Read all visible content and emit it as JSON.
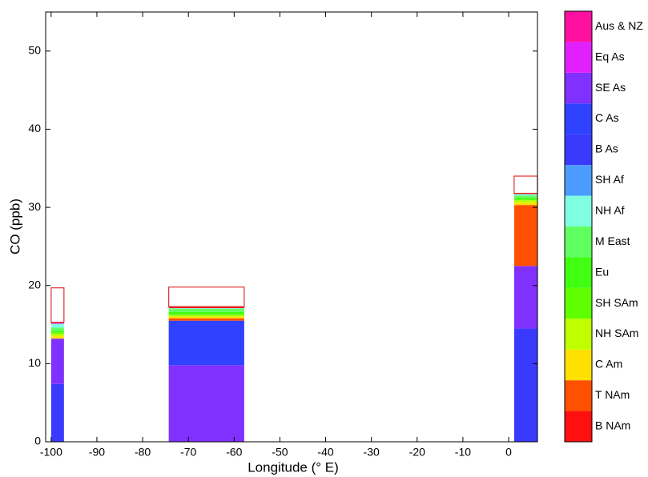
{
  "chart_data": {
    "type": "stacked-range-bar",
    "xlabel": "Longitude (° E)",
    "ylabel": "CO (ppb)",
    "xlim": [
      -101.2,
      6.3
    ],
    "ylim": [
      0,
      55
    ],
    "xticks": [
      -100,
      -90,
      -80,
      -70,
      -60,
      -50,
      -40,
      -30,
      -20,
      -10,
      0
    ],
    "yticks": [
      0,
      10,
      20,
      30,
      40,
      50
    ],
    "x_start": [
      -100,
      -74.3,
      1.2
    ],
    "x_end": [
      -97.2,
      -57.8,
      6.3
    ],
    "observed": [
      19.7,
      19.8,
      34.0
    ],
    "observed_color": "#e03030",
    "series": [
      {
        "name": "B NAm",
        "color": "#ff1010",
        "values": [
          0.1,
          0.2,
          0.1
        ]
      },
      {
        "name": "T NAm",
        "color": "#ff5000",
        "values": [
          0,
          0.3,
          7.8
        ]
      },
      {
        "name": "C Am",
        "color": "#ffe000",
        "values": [
          0.3,
          0.2,
          0.3
        ]
      },
      {
        "name": "NH SAm",
        "color": "#c0ff00",
        "values": [
          0.3,
          0.2,
          0.3
        ]
      },
      {
        "name": "SH SAm",
        "color": "#60ff00",
        "values": [
          0.2,
          0.1,
          0.1
        ]
      },
      {
        "name": "Eu",
        "color": "#40ff10",
        "values": [
          0.2,
          0.3,
          0.2
        ]
      },
      {
        "name": "M East",
        "color": "#60ff60",
        "values": [
          0.4,
          0.4,
          0.3
        ]
      },
      {
        "name": "NH Af",
        "color": "#80ffe0",
        "values": [
          0.5,
          0.1,
          0.2
        ]
      },
      {
        "name": "SH Af",
        "color": "#4c9cff",
        "values": [
          0,
          0,
          0
        ]
      },
      {
        "name": "B As",
        "color": "#3a3aff",
        "values": [
          7.4,
          0,
          14.5
        ]
      },
      {
        "name": "C As",
        "color": "#2e42ff",
        "values": [
          0,
          5.7,
          0
        ]
      },
      {
        "name": "SE As",
        "color": "#8030ff",
        "values": [
          5.8,
          9.8,
          8.0
        ]
      },
      {
        "name": "Eq As",
        "color": "#e020ff",
        "values": [
          0.1,
          0,
          0
        ]
      },
      {
        "name": "Aus & NZ",
        "color": "#ff10a0",
        "values": [
          0,
          0,
          0
        ]
      }
    ]
  }
}
